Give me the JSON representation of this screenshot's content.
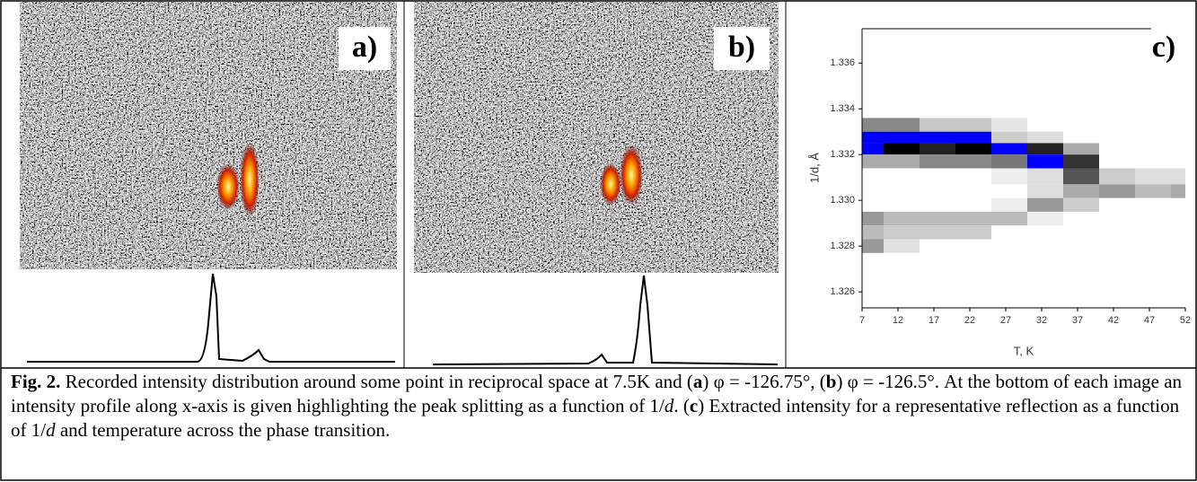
{
  "panels": [
    {
      "label": "a)"
    },
    {
      "label": "b)"
    }
  ],
  "chart_data": {
    "type": "heatmap",
    "label": "c)",
    "xlabel": "T, K",
    "ylabel": "1/d, Å",
    "xlim": [
      7,
      52
    ],
    "xticks": [
      7,
      12,
      17,
      22,
      27,
      32,
      37,
      42,
      47,
      52
    ],
    "ylim": [
      1.3253,
      1.3375
    ],
    "yticks": [
      1.326,
      1.328,
      {
        "value": 1.33,
        "label": "1.330"
      },
      1.332,
      1.334,
      1.336
    ],
    "cells": [
      {
        "x": [
          7,
          15
        ],
        "y": [
          1.333,
          1.3336
        ],
        "color": "#888888"
      },
      {
        "x": [
          15,
          25
        ],
        "y": [
          1.333,
          1.3336
        ],
        "color": "#c8c8c8"
      },
      {
        "x": [
          25,
          30
        ],
        "y": [
          1.333,
          1.3336
        ],
        "color": "#e6e6e6"
      },
      {
        "x": [
          7,
          25
        ],
        "y": [
          1.3325,
          1.333
        ],
        "color": "#0000ff"
      },
      {
        "x": [
          25,
          30
        ],
        "y": [
          1.3325,
          1.333
        ],
        "color": "#cccccc"
      },
      {
        "x": [
          30,
          35
        ],
        "y": [
          1.3325,
          1.333
        ],
        "color": "#dddddd"
      },
      {
        "x": [
          7,
          10
        ],
        "y": [
          1.332,
          1.3325
        ],
        "color": "#0000ff"
      },
      {
        "x": [
          10,
          15
        ],
        "y": [
          1.332,
          1.3325
        ],
        "color": "#000000"
      },
      {
        "x": [
          15,
          20
        ],
        "y": [
          1.332,
          1.3325
        ],
        "color": "#222222"
      },
      {
        "x": [
          20,
          25
        ],
        "y": [
          1.332,
          1.3325
        ],
        "color": "#000000"
      },
      {
        "x": [
          25,
          30
        ],
        "y": [
          1.332,
          1.3325
        ],
        "color": "#0000ff"
      },
      {
        "x": [
          30,
          35
        ],
        "y": [
          1.332,
          1.3325
        ],
        "color": "#222222"
      },
      {
        "x": [
          35,
          40
        ],
        "y": [
          1.332,
          1.3325
        ],
        "color": "#aaaaaa"
      },
      {
        "x": [
          7,
          15
        ],
        "y": [
          1.3314,
          1.332
        ],
        "color": "#aaaaaa"
      },
      {
        "x": [
          15,
          25
        ],
        "y": [
          1.3314,
          1.332
        ],
        "color": "#888888"
      },
      {
        "x": [
          25,
          30
        ],
        "y": [
          1.3314,
          1.332
        ],
        "color": "#777777"
      },
      {
        "x": [
          30,
          35
        ],
        "y": [
          1.3314,
          1.332
        ],
        "color": "#0000ff"
      },
      {
        "x": [
          35,
          40
        ],
        "y": [
          1.3314,
          1.332
        ],
        "color": "#333333"
      },
      {
        "x": [
          25,
          30
        ],
        "y": [
          1.3307,
          1.3314
        ],
        "color": "#eeeeee"
      },
      {
        "x": [
          30,
          35
        ],
        "y": [
          1.3307,
          1.3314
        ],
        "color": "#dddddd"
      },
      {
        "x": [
          35,
          40
        ],
        "y": [
          1.3307,
          1.3314
        ],
        "color": "#555555"
      },
      {
        "x": [
          40,
          45
        ],
        "y": [
          1.3307,
          1.3314
        ],
        "color": "#cccccc"
      },
      {
        "x": [
          45,
          50
        ],
        "y": [
          1.3307,
          1.3314
        ],
        "color": "#dddddd"
      },
      {
        "x": [
          50,
          52
        ],
        "y": [
          1.3307,
          1.3314
        ],
        "color": "#dddddd"
      },
      {
        "x": [
          30,
          35
        ],
        "y": [
          1.3301,
          1.3307
        ],
        "color": "#dddddd"
      },
      {
        "x": [
          35,
          40
        ],
        "y": [
          1.3301,
          1.3307
        ],
        "color": "#aaaaaa"
      },
      {
        "x": [
          40,
          45
        ],
        "y": [
          1.3301,
          1.3307
        ],
        "color": "#999999"
      },
      {
        "x": [
          45,
          50
        ],
        "y": [
          1.3301,
          1.3307
        ],
        "color": "#bbbbbb"
      },
      {
        "x": [
          50,
          52
        ],
        "y": [
          1.3301,
          1.3307
        ],
        "color": "#aaaaaa"
      },
      {
        "x": [
          25,
          30
        ],
        "y": [
          1.3295,
          1.3301
        ],
        "color": "#eeeeee"
      },
      {
        "x": [
          30,
          35
        ],
        "y": [
          1.3295,
          1.3301
        ],
        "color": "#999999"
      },
      {
        "x": [
          35,
          40
        ],
        "y": [
          1.3295,
          1.3301
        ],
        "color": "#cccccc"
      },
      {
        "x": [
          7,
          10
        ],
        "y": [
          1.3289,
          1.3295
        ],
        "color": "#999999"
      },
      {
        "x": [
          10,
          30
        ],
        "y": [
          1.3289,
          1.3295
        ],
        "color": "#bbbbbb"
      },
      {
        "x": [
          30,
          35
        ],
        "y": [
          1.3289,
          1.3295
        ],
        "color": "#eeeeee"
      },
      {
        "x": [
          7,
          10
        ],
        "y": [
          1.3283,
          1.3289
        ],
        "color": "#bbbbbb"
      },
      {
        "x": [
          10,
          25
        ],
        "y": [
          1.3283,
          1.3289
        ],
        "color": "#cccccc"
      },
      {
        "x": [
          7,
          10
        ],
        "y": [
          1.3277,
          1.3283
        ],
        "color": "#999999"
      },
      {
        "x": [
          10,
          15
        ],
        "y": [
          1.3277,
          1.3283
        ],
        "color": "#e0e0e0"
      }
    ]
  },
  "caption": {
    "runs": [
      {
        "text": "Fig. 2.",
        "style": "bold"
      },
      {
        "text": " Recorded intensity distribution around some point in reciprocal space at 7.5K and (",
        "style": "normal"
      },
      {
        "text": "a",
        "style": "bold"
      },
      {
        "text": ") φ = -126.75°, (",
        "style": "normal"
      },
      {
        "text": "b",
        "style": "bold"
      },
      {
        "text": ") φ = -126.5°. At the bottom of each image an intensity profile along x-axis is given highlighting the peak splitting as a function of 1/",
        "style": "normal"
      },
      {
        "text": "d",
        "style": "italic"
      },
      {
        "text": ". (",
        "style": "normal"
      },
      {
        "text": "c",
        "style": "bold"
      },
      {
        "text": ") Extracted intensity for a representative reflection as a function of 1/",
        "style": "normal"
      },
      {
        "text": "d",
        "style": "italic"
      },
      {
        "text": " and temperature across the phase transition.",
        "style": "normal"
      }
    ]
  }
}
